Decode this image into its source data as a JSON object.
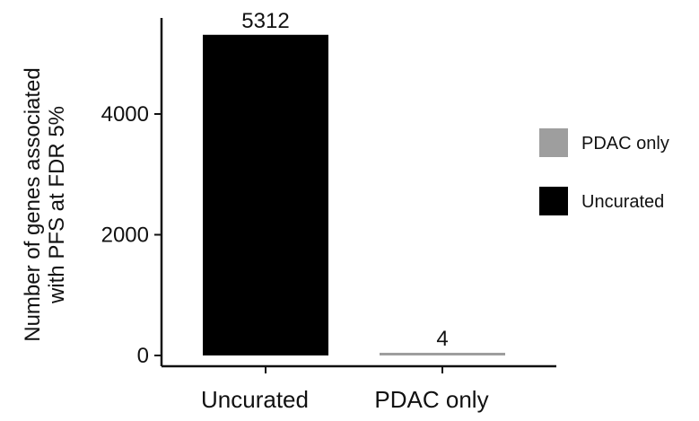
{
  "chart_data": {
    "type": "bar",
    "categories": [
      "Uncurated",
      "PDAC only"
    ],
    "values": [
      5312,
      4
    ],
    "data_labels": [
      "5312",
      "4"
    ],
    "ylabel_lines": [
      "Number of genes associated",
      "with PFS at FDR 5%"
    ],
    "xlabel": "",
    "ylim": [
      0,
      5450
    ],
    "yticks": [
      0,
      2000,
      4000
    ],
    "ytick_labels": [
      "0",
      "2000",
      "4000"
    ],
    "colors": [
      "#000000",
      "#9e9e9e"
    ],
    "legend": {
      "placement": "right",
      "entries": [
        {
          "label": "PDAC only",
          "color": "#9e9e9e"
        },
        {
          "label": "Uncurated",
          "color": "#000000"
        }
      ]
    },
    "grid": false
  }
}
